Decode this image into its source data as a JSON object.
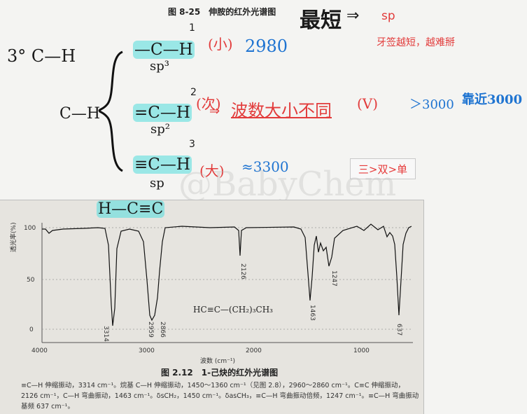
{
  "header": {
    "figure_title": "图 8-25　伸胺的红外光谱图",
    "shortest": "最短",
    "arrow": "⇒",
    "sp": "sp",
    "rule": "牙签越短，越难掰"
  },
  "notes": {
    "left_label": "3° C—H",
    "ch": "C—H",
    "row1": {
      "index": "1",
      "bond": "—C—H",
      "hybrid": "sp³",
      "size": "(小)",
      "value": "2980"
    },
    "row2": {
      "index": "2",
      "bond": "=C—H",
      "hybrid": "sp²",
      "size": "(次)",
      "arrow": "⇒",
      "wave": "波数大小不同",
      "mid": "(Ⅴ)",
      "gt": "＞3000",
      "near": "靠近3000"
    },
    "row3": {
      "index": "3",
      "bond": "≡C—H",
      "hybrid": "sp",
      "size": "(大)",
      "value": "≈3300"
    },
    "bottom_bond": "H—C≡C"
  },
  "tag": "三>双>单",
  "watermark": "@BabyChem",
  "spectrum": {
    "ylabel": "透光率(%)",
    "xlabel": "波数 (cm⁻¹)",
    "y_ticks": [
      "100",
      "50",
      "0"
    ],
    "x_ticks": [
      "4000",
      "3000",
      "2000",
      "1000"
    ],
    "peaks": [
      "3314",
      "2959",
      "2866",
      "2126",
      "1463",
      "1247",
      "637"
    ],
    "formula": "HC≡C—(CH₂)₃CH₃",
    "caption": "图 2.12　1-己炔的红外光谱图",
    "footnote": "≡C—H 伸缩振动，3314 cm⁻¹。烷基 C—H 伸缩振动，1450～1360 cm⁻¹（见图 2.8），2960～2860 cm⁻¹。C≡C 伸缩振动，2126 cm⁻¹，C—H 弯曲振动，1463 cm⁻¹。δsCH₂，1450 cm⁻¹。δasCH₃，≡C—H 弯曲振动倍频，1247 cm⁻¹。≡C—H 弯曲振动基频 637 cm⁻¹。"
  },
  "colors": {
    "red": "#e23b3b",
    "blue": "#1f74d1",
    "highlight": "#4fe0dc"
  }
}
